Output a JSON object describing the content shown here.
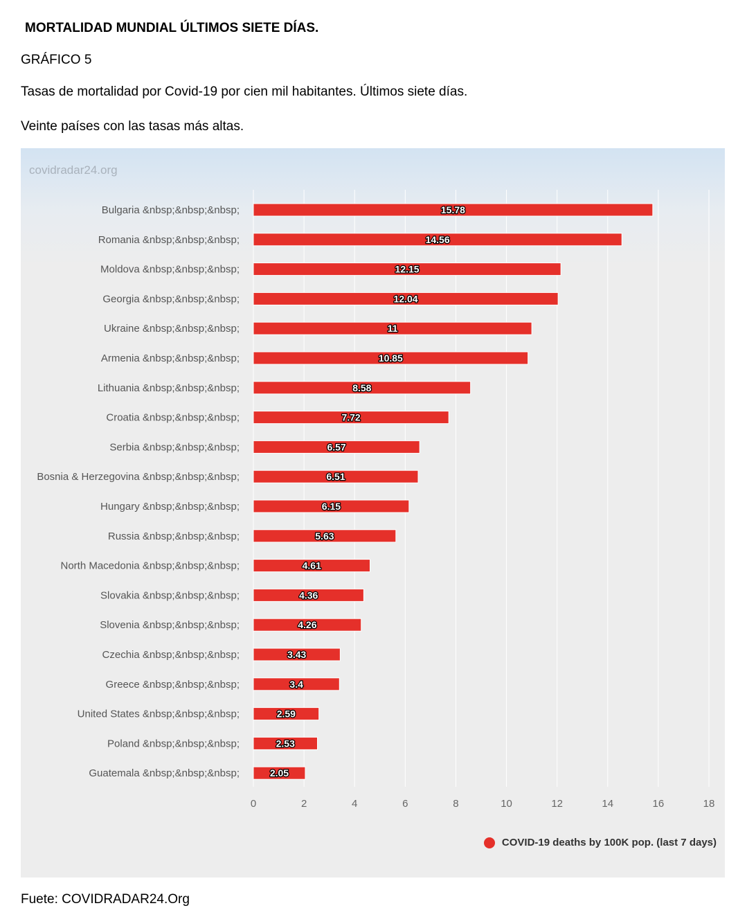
{
  "header": {
    "heading": "MORTALIDAD MUNDIAL ÚLTIMOS SIETE DÍAS.",
    "figure_label": "GRÁFICO 5",
    "subtitle": "Tasas de mortalidad por Covid-19 por cien mil habitantes. Últimos siete días.",
    "subtitle2": "Veinte países con las tasas más altas."
  },
  "chart": {
    "watermark": "covidradar24.org",
    "legend_label": "COVID-19 deaths by 100K pop. (last 7 days)"
  },
  "footer": {
    "source": "Fuete: COVIDRADAR24.Org"
  },
  "colors": {
    "bar": "#e5302a",
    "bar_stroke": "#ffffff",
    "category_label": "#555555",
    "tick_label": "#666666",
    "gridline": "#ffffff"
  },
  "chart_data": {
    "type": "bar",
    "orientation": "horizontal",
    "categories": [
      "Bulgaria &nbsp;&nbsp;&nbsp;",
      "Romania &nbsp;&nbsp;&nbsp;",
      "Moldova &nbsp;&nbsp;&nbsp;",
      "Georgia &nbsp;&nbsp;&nbsp;",
      "Ukraine &nbsp;&nbsp;&nbsp;",
      "Armenia &nbsp;&nbsp;&nbsp;",
      "Lithuania &nbsp;&nbsp;&nbsp;",
      "Croatia &nbsp;&nbsp;&nbsp;",
      "Serbia &nbsp;&nbsp;&nbsp;",
      "Bosnia & Herzegovina &nbsp;&nbsp;&nbsp;",
      "Hungary &nbsp;&nbsp;&nbsp;",
      "Russia &nbsp;&nbsp;&nbsp;",
      "North Macedonia &nbsp;&nbsp;&nbsp;",
      "Slovakia &nbsp;&nbsp;&nbsp;",
      "Slovenia &nbsp;&nbsp;&nbsp;",
      "Czechia &nbsp;&nbsp;&nbsp;",
      "Greece &nbsp;&nbsp;&nbsp;",
      "United States &nbsp;&nbsp;&nbsp;",
      "Poland &nbsp;&nbsp;&nbsp;",
      "Guatemala &nbsp;&nbsp;&nbsp;"
    ],
    "series": [
      {
        "name": "COVID-19 deaths by 100K pop. (last 7 days)",
        "values": [
          15.78,
          14.56,
          12.15,
          12.04,
          11,
          10.85,
          8.58,
          7.72,
          6.57,
          6.51,
          6.15,
          5.63,
          4.61,
          4.36,
          4.26,
          3.43,
          3.4,
          2.59,
          2.53,
          2.05
        ]
      }
    ],
    "data_labels": [
      "15.78",
      "14.56",
      "12.15",
      "12.04",
      "11",
      "10.85",
      "8.58",
      "7.72",
      "6.57",
      "6.51",
      "6.15",
      "5.63",
      "4.61",
      "4.36",
      "4.26",
      "3.43",
      "3.4",
      "2.59",
      "2.53",
      "2.05"
    ],
    "x_ticks": [
      "0",
      "2",
      "4",
      "6",
      "8",
      "10",
      "12",
      "14",
      "16",
      "18"
    ],
    "xlim": [
      0,
      18
    ],
    "grid": "vertical",
    "legend_position": "bottom-right",
    "title": "",
    "xlabel": "",
    "ylabel": ""
  }
}
